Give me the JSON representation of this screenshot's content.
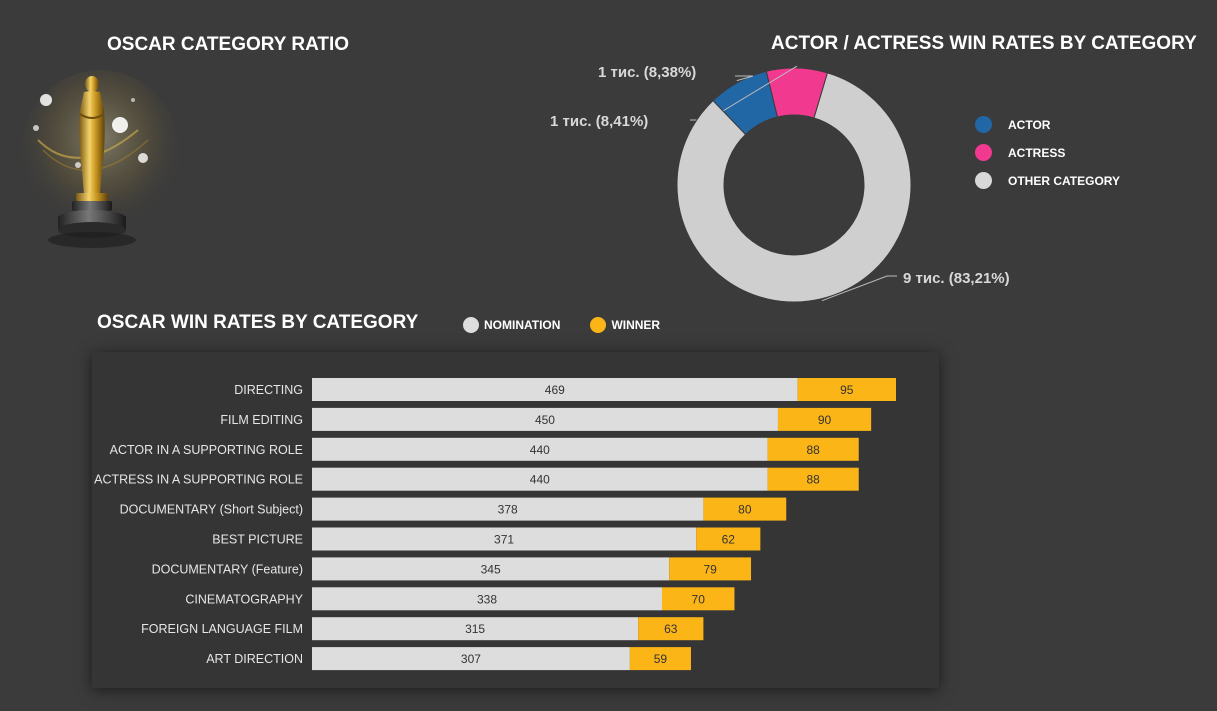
{
  "titles": {
    "ratio": "OSCAR CATEGORY RATIO",
    "donut": "ACTOR / ACTRESS WIN RATES BY CATEGORY",
    "bars": "OSCAR WIN RATES BY CATEGORY"
  },
  "colors": {
    "background": "#3b3b3b",
    "panel": "#353535",
    "actor": "#2166a5",
    "actress": "#f0398f",
    "other": "#cfcfcf",
    "nomination": "#dddddd",
    "winner": "#fbb516"
  },
  "donut_legend": [
    {
      "label": "ACTOR",
      "color": "#2166a5"
    },
    {
      "label": "ACTRESS",
      "color": "#f0398f"
    },
    {
      "label": "OTHER CATEGORY",
      "color": "#d8d8d8"
    }
  ],
  "bar_legend": [
    {
      "label": "NOMINATION",
      "color": "#dddddd"
    },
    {
      "label": "WINNER",
      "color": "#fbb516"
    }
  ],
  "chart_data": [
    {
      "type": "pie",
      "title": "ACTOR / ACTRESS WIN RATES BY CATEGORY",
      "hole": true,
      "slices": [
        {
          "name": "ACTOR",
          "percent": 8.38,
          "label": "1 тис. (8,38%)",
          "color": "#2166a5"
        },
        {
          "name": "ACTRESS",
          "percent": 8.41,
          "label": "1 тис. (8,41%)",
          "color": "#f0398f"
        },
        {
          "name": "OTHER CATEGORY",
          "percent": 83.21,
          "label": "9 тис. (83,21%)",
          "color": "#cfcfcf"
        }
      ]
    },
    {
      "type": "bar",
      "orientation": "horizontal",
      "stacked": true,
      "title": "OSCAR WIN RATES BY CATEGORY",
      "categories": [
        "DIRECTING",
        "FILM EDITING",
        "ACTOR IN A SUPPORTING ROLE",
        "ACTRESS IN A SUPPORTING ROLE",
        "DOCUMENTARY (Short Subject)",
        "BEST PICTURE",
        "DOCUMENTARY (Feature)",
        "CINEMATOGRAPHY",
        "FOREIGN LANGUAGE FILM",
        "ART DIRECTION"
      ],
      "series": [
        {
          "name": "NOMINATION",
          "color": "#dddddd",
          "values": [
            469,
            450,
            440,
            440,
            378,
            371,
            345,
            338,
            315,
            307
          ]
        },
        {
          "name": "WINNER",
          "color": "#fbb516",
          "values": [
            95,
            90,
            88,
            88,
            80,
            62,
            79,
            70,
            63,
            59
          ]
        }
      ],
      "xlim": [
        0,
        564
      ],
      "grid": false
    }
  ]
}
